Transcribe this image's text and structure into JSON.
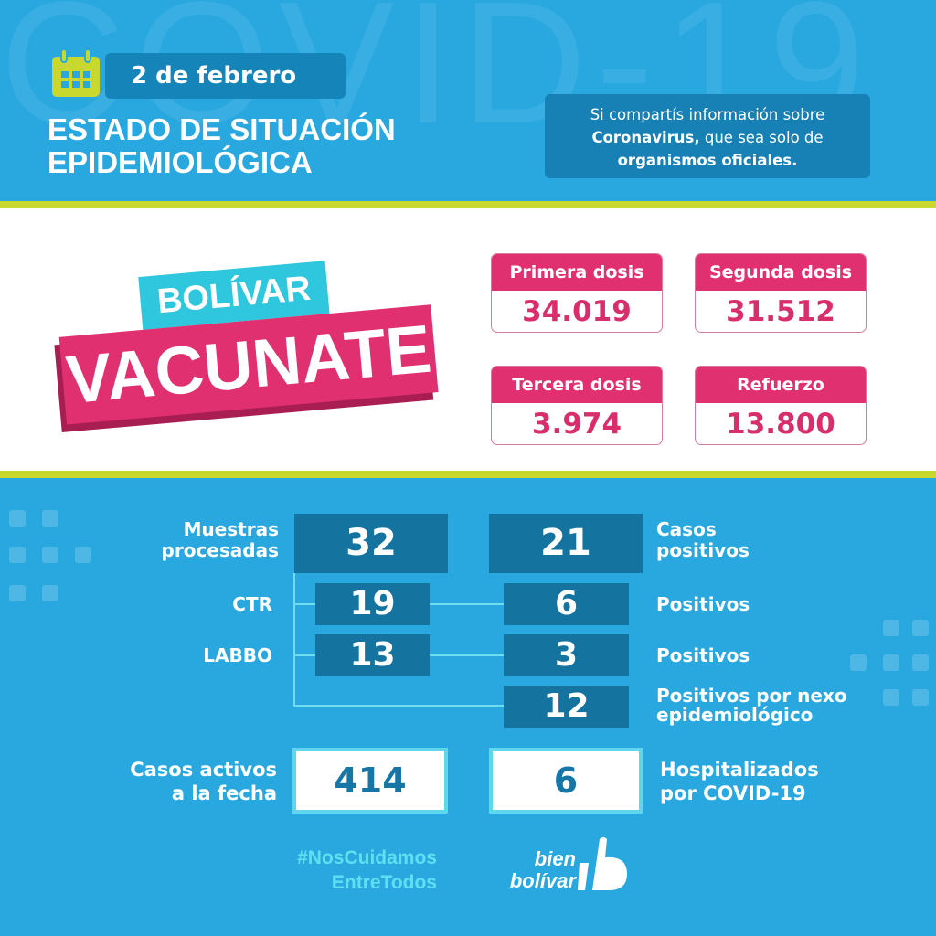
{
  "watermark": "COVID-19",
  "header": {
    "date": "2 de febrero",
    "title_line1": "ESTADO DE SITUACIÓN",
    "title_line2": "EPIDEMIOLÓGICA",
    "info_line1": "Si compartís información sobre",
    "info_bold1": "Coronavirus,",
    "info_line2": " que sea solo de",
    "info_bold2": "organismos oficiales."
  },
  "campaign": {
    "top": "BOLÍVAR",
    "main": "VACUNATE"
  },
  "doses": [
    {
      "label": "Primera dosis",
      "value": "34.019"
    },
    {
      "label": "Segunda dosis",
      "value": "31.512"
    },
    {
      "label": "Tercera dosis",
      "value": "3.974"
    },
    {
      "label": "Refuerzo",
      "value": "13.800"
    }
  ],
  "stats": {
    "muestras_label1": "Muestras",
    "muestras_label2": "procesadas",
    "muestras": "32",
    "casos_label1": "Casos",
    "casos_label2": "positivos",
    "casos": "21",
    "ctr_label": "CTR",
    "ctr": "19",
    "ctr_pos": "6",
    "ctr_pos_label": "Positivos",
    "labbo_label": "LABBO",
    "labbo": "13",
    "labbo_pos": "3",
    "labbo_pos_label": "Positivos",
    "nexo": "12",
    "nexo_label1": "Positivos por nexo",
    "nexo_label2": "epidemiológico",
    "activos_label1": "Casos activos",
    "activos_label2": "a la fecha",
    "activos": "414",
    "hosp": "6",
    "hosp_label1": "Hospitalizados",
    "hosp_label2": "por COVID-19"
  },
  "footer": {
    "hashtag1": "#NosCuidamos",
    "hashtag2": "EntreTodos",
    "logo1": "bien",
    "logo2": "bolívar"
  },
  "colors": {
    "blue": "#29a8e0",
    "dark_blue": "#15739f",
    "pink": "#e0306f",
    "green": "#c8d82e",
    "cyan": "#5fd6ee"
  }
}
